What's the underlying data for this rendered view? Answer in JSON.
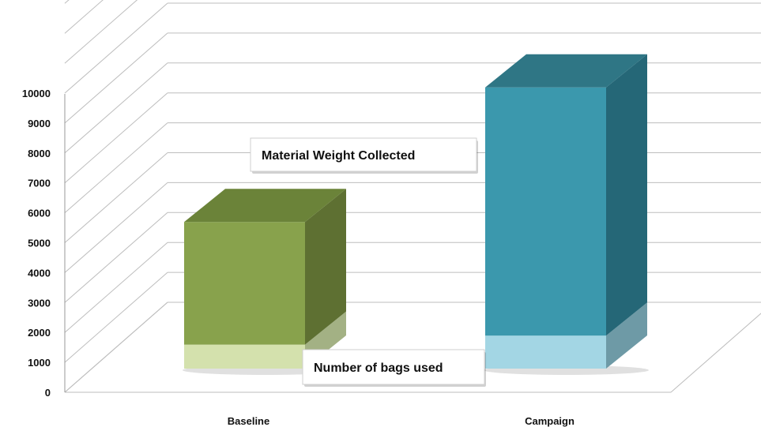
{
  "chart_data": {
    "type": "bar",
    "stacked": true,
    "three_d": true,
    "categories": [
      "Baseline",
      "Campaign"
    ],
    "series": [
      {
        "name": "Number of bags used",
        "values": [
          800,
          1100
        ],
        "colors": {
          "front": "#d4e1ad",
          "side": "#a3b184",
          "top": "#c0d19a"
        }
      },
      {
        "name": "Material Weight Collected",
        "values": [
          4100,
          8300
        ],
        "colors": {
          "front": "#88a24c",
          "side": "#5e7032",
          "top": "#6b8339"
        }
      }
    ],
    "campaign_colors": {
      "lower": {
        "front": "#a3d6e4",
        "side": "#6e9aa6"
      },
      "upper": {
        "front": "#3b98ad",
        "side": "#256777",
        "top": "#2f7685"
      }
    },
    "yticks": [
      "0",
      "1000",
      "2000",
      "3000",
      "4000",
      "5000",
      "6000",
      "7000",
      "8000",
      "9000",
      "10000"
    ],
    "ylim": [
      0,
      10000
    ],
    "grid": true,
    "title": "",
    "xlabel": "",
    "ylabel": ""
  }
}
